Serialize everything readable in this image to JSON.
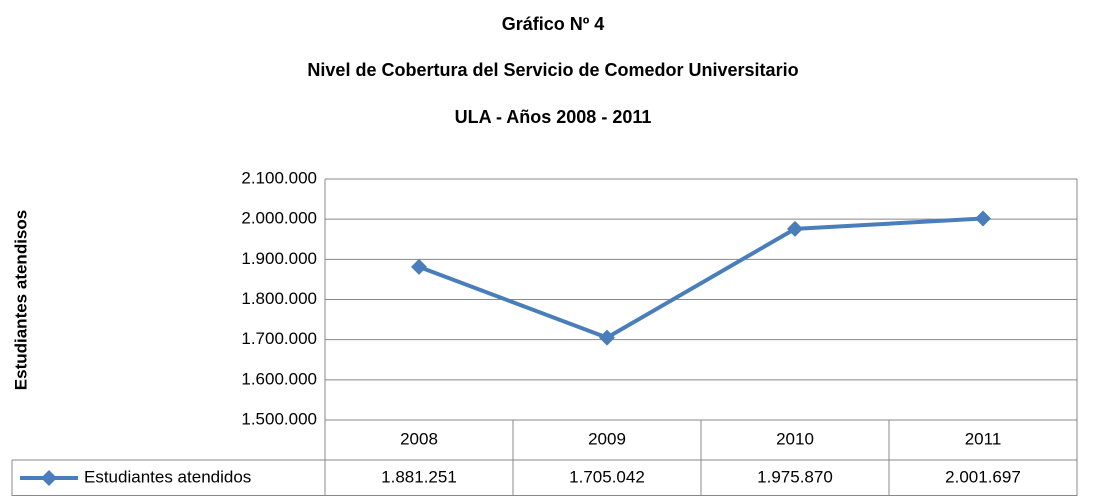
{
  "chart_data": {
    "type": "line",
    "title": [
      "Gráfico Nº 4",
      "Nivel de Cobertura del Servicio de Comedor Universitario",
      "ULA - Años 2008 - 2011"
    ],
    "y_label": "Estudiantes atendisos",
    "categories": [
      "2008",
      "2009",
      "2010",
      "2011"
    ],
    "series": [
      {
        "name": "Estudiantes atendidos",
        "color": "#4a7ebb",
        "values": [
          1881251,
          1705042,
          1975870,
          2001697
        ],
        "value_labels": [
          "1.881.251",
          "1.705.042",
          "1.975.870",
          "2.001.697"
        ]
      }
    ],
    "ylim": [
      1500000,
      2100000
    ],
    "yticks": [
      {
        "value": 1500000,
        "label": "1.500.000"
      },
      {
        "value": 1600000,
        "label": "1.600.000"
      },
      {
        "value": 1700000,
        "label": "1.700.000"
      },
      {
        "value": 1800000,
        "label": "1.800.000"
      },
      {
        "value": 1900000,
        "label": "1.900.000"
      },
      {
        "value": 2000000,
        "label": "2.000.000"
      },
      {
        "value": 2100000,
        "label": "2.100.000"
      }
    ],
    "grid": true,
    "legend": "data-table"
  }
}
